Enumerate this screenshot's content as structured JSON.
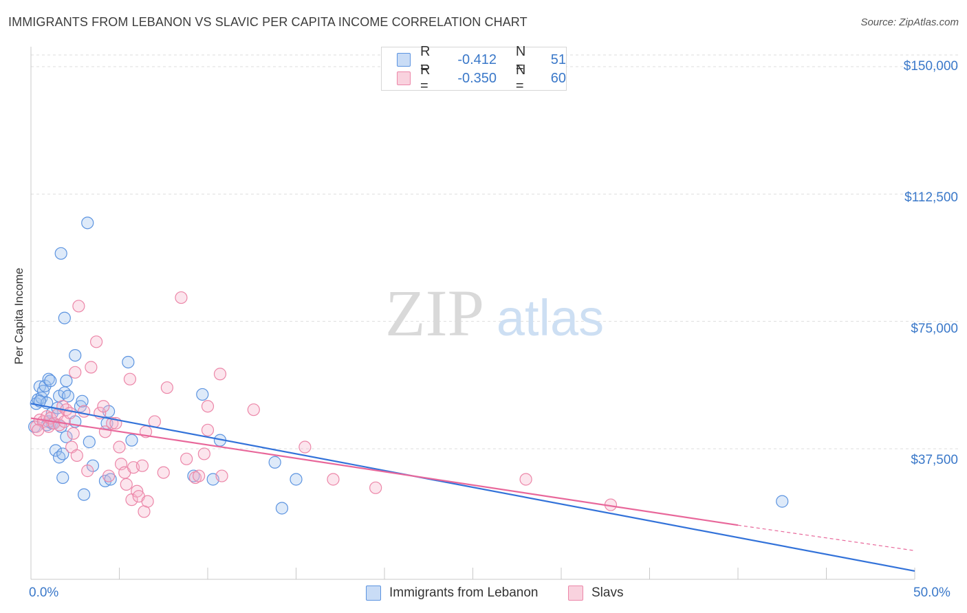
{
  "title": "IMMIGRANTS FROM LEBANON VS SLAVIC PER CAPITA INCOME CORRELATION CHART",
  "source": "Source: ZipAtlas.com",
  "watermark": {
    "zip": "ZIP",
    "atlas": "atlas"
  },
  "legend": {
    "r_label": "R =",
    "n_label": "N =",
    "rows": [
      {
        "r": "-0.412",
        "n": "51",
        "color": "#5b93e0"
      },
      {
        "r": "-0.350",
        "n": "60",
        "color": "#ec86a8"
      }
    ]
  },
  "bottom_legend": [
    "Immigrants from Lebanon",
    "Slavs"
  ],
  "chart_data": {
    "type": "scatter",
    "title": "IMMIGRANTS FROM LEBANON VS SLAVIC PER CAPITA INCOME CORRELATION CHART",
    "xlabel": "",
    "ylabel": "Per Capita Income",
    "xlim": [
      0,
      50
    ],
    "ylim": [
      0,
      157000
    ],
    "x_tick_labels": [
      "0.0%",
      "50.0%"
    ],
    "y_ticks": [
      37500,
      75000,
      112500,
      150000
    ],
    "y_tick_labels": [
      "$37,500",
      "$75,000",
      "$112,500",
      "$150,000"
    ],
    "grid": "horizontal dashed",
    "legend_placement": "top-center",
    "series": [
      {
        "name": "Immigrants from Lebanon",
        "color": "#5b93e0",
        "r": -0.412,
        "n": 51,
        "trend": {
          "x0": 0,
          "y0": 50800,
          "x1": 50,
          "y1": 1500
        },
        "points": [
          [
            0.3,
            50800
          ],
          [
            0.4,
            52000
          ],
          [
            0.5,
            55800
          ],
          [
            0.6,
            52500
          ],
          [
            0.7,
            54500
          ],
          [
            0.8,
            56000
          ],
          [
            0.9,
            51000
          ],
          [
            1.0,
            58000
          ],
          [
            1.1,
            57500
          ],
          [
            1.2,
            48000
          ],
          [
            0.9,
            44500
          ],
          [
            1.2,
            45000
          ],
          [
            1.5,
            49500
          ],
          [
            1.7,
            44000
          ],
          [
            1.6,
            53000
          ],
          [
            1.9,
            54000
          ],
          [
            2.0,
            57500
          ],
          [
            2.1,
            53000
          ],
          [
            2.0,
            41000
          ],
          [
            1.4,
            37000
          ],
          [
            1.6,
            35000
          ],
          [
            1.8,
            36000
          ],
          [
            1.7,
            95000
          ],
          [
            1.9,
            76000
          ],
          [
            2.5,
            65000
          ],
          [
            3.2,
            104000
          ],
          [
            1.8,
            29000
          ],
          [
            2.8,
            50000
          ],
          [
            2.9,
            51500
          ],
          [
            3.3,
            39500
          ],
          [
            3.5,
            32500
          ],
          [
            4.4,
            48500
          ],
          [
            4.3,
            45000
          ],
          [
            5.5,
            63000
          ],
          [
            5.7,
            40000
          ],
          [
            3.0,
            24000
          ],
          [
            4.2,
            28000
          ],
          [
            4.5,
            28500
          ],
          [
            9.2,
            29500
          ],
          [
            9.7,
            53500
          ],
          [
            10.3,
            28500
          ],
          [
            10.7,
            40000
          ],
          [
            13.8,
            33500
          ],
          [
            14.2,
            20000
          ],
          [
            15.0,
            28500
          ],
          [
            42.5,
            22000
          ],
          [
            1.0,
            45500
          ],
          [
            0.5,
            51500
          ],
          [
            2.5,
            45500
          ],
          [
            1.3,
            45000
          ],
          [
            0.2,
            44000
          ]
        ]
      },
      {
        "name": "Slavs",
        "color": "#ec86a8",
        "r": -0.35,
        "n": 60,
        "trend": {
          "x0": 0,
          "y0": 46500,
          "x1": 40,
          "y1": 15000,
          "dashed_to_x": 50,
          "dashed_to_y": 7500
        },
        "points": [
          [
            0.3,
            44000
          ],
          [
            0.5,
            46000
          ],
          [
            0.7,
            45500
          ],
          [
            0.9,
            47000
          ],
          [
            1.0,
            44000
          ],
          [
            1.1,
            46500
          ],
          [
            1.3,
            45000
          ],
          [
            1.5,
            47500
          ],
          [
            1.6,
            44500
          ],
          [
            1.8,
            50000
          ],
          [
            1.9,
            45500
          ],
          [
            2.0,
            49000
          ],
          [
            2.2,
            48000
          ],
          [
            2.3,
            38000
          ],
          [
            2.4,
            42000
          ],
          [
            2.5,
            60000
          ],
          [
            2.6,
            35500
          ],
          [
            2.7,
            79500
          ],
          [
            3.0,
            48500
          ],
          [
            3.2,
            31000
          ],
          [
            3.4,
            61500
          ],
          [
            3.7,
            69000
          ],
          [
            3.9,
            48000
          ],
          [
            4.1,
            50000
          ],
          [
            4.2,
            42500
          ],
          [
            4.4,
            29500
          ],
          [
            4.6,
            45000
          ],
          [
            4.8,
            45000
          ],
          [
            5.0,
            38000
          ],
          [
            5.1,
            33000
          ],
          [
            5.3,
            30500
          ],
          [
            5.4,
            27000
          ],
          [
            5.6,
            58000
          ],
          [
            5.7,
            22500
          ],
          [
            5.8,
            32000
          ],
          [
            6.0,
            25000
          ],
          [
            6.1,
            23500
          ],
          [
            6.3,
            32500
          ],
          [
            6.4,
            19000
          ],
          [
            6.6,
            22000
          ],
          [
            6.5,
            42500
          ],
          [
            7.0,
            45500
          ],
          [
            7.5,
            30500
          ],
          [
            7.7,
            55500
          ],
          [
            8.5,
            82000
          ],
          [
            8.8,
            34500
          ],
          [
            9.3,
            29000
          ],
          [
            9.5,
            29500
          ],
          [
            9.8,
            36000
          ],
          [
            10.0,
            43000
          ],
          [
            10.0,
            50000
          ],
          [
            10.7,
            59500
          ],
          [
            10.8,
            29500
          ],
          [
            12.6,
            49000
          ],
          [
            15.5,
            38000
          ],
          [
            17.1,
            28500
          ],
          [
            19.5,
            26000
          ],
          [
            28.0,
            28500
          ],
          [
            32.8,
            21000
          ],
          [
            0.4,
            43000
          ]
        ]
      }
    ]
  }
}
